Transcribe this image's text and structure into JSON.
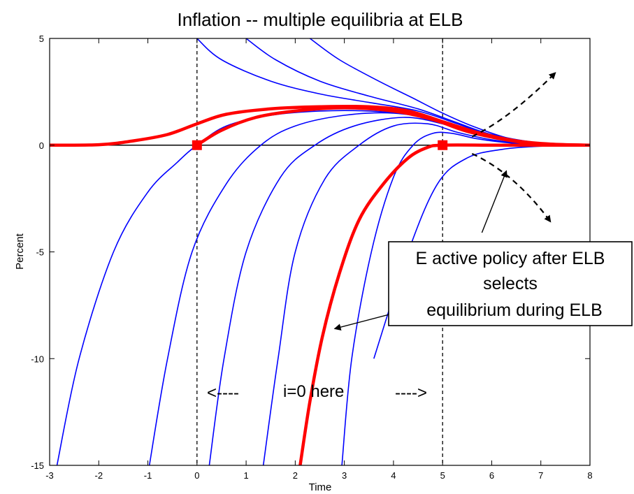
{
  "chart_data": {
    "type": "line",
    "title": "Inflation -- multiple equilibria at ELB",
    "xlabel": "Time",
    "ylabel": "Percent",
    "xlim": [
      -3,
      8
    ],
    "ylim": [
      -15,
      5
    ],
    "x_ticks": [
      -3,
      -2,
      -1,
      0,
      1,
      2,
      3,
      4,
      5,
      6,
      7,
      8
    ],
    "y_ticks": [
      5,
      0,
      -5,
      -10,
      -15
    ],
    "grid": false,
    "vertical_dashed_lines_at_x": [
      0,
      5
    ],
    "colors": {
      "blue_series": "#0000ff",
      "red_series": "#ff0000",
      "zero_line": "#000000"
    },
    "blue_series": [
      {
        "points": [
          [
            -2.85,
            -15
          ],
          [
            -2.4,
            -10
          ],
          [
            -1.7,
            -5
          ],
          [
            -1.0,
            -2.2
          ],
          [
            -0.4,
            -0.8
          ],
          [
            0,
            0
          ],
          [
            0.6,
            0.9
          ],
          [
            1.5,
            1.4
          ],
          [
            2.5,
            1.6
          ],
          [
            3.5,
            1.6
          ],
          [
            4.5,
            1.4
          ],
          [
            5.3,
            0.9
          ],
          [
            6,
            0.4
          ],
          [
            7,
            0.05
          ],
          [
            8,
            0
          ]
        ]
      },
      {
        "points": [
          [
            -0.97,
            -15
          ],
          [
            -0.6,
            -10
          ],
          [
            -0.1,
            -5
          ],
          [
            0.6,
            -1.8
          ],
          [
            1.3,
            0
          ],
          [
            2,
            0.9
          ],
          [
            3,
            1.4
          ],
          [
            4,
            1.5
          ],
          [
            4.8,
            1.2
          ],
          [
            5.5,
            0.7
          ],
          [
            6.3,
            0.2
          ],
          [
            7,
            0.05
          ],
          [
            8,
            0
          ]
        ]
      },
      {
        "points": [
          [
            0.25,
            -15
          ],
          [
            0.55,
            -10
          ],
          [
            1.0,
            -5
          ],
          [
            1.7,
            -1.5
          ],
          [
            2.4,
            0
          ],
          [
            3.2,
            0.9
          ],
          [
            4.2,
            1.3
          ],
          [
            5,
            1.0
          ],
          [
            5.7,
            0.5
          ],
          [
            6.5,
            0.15
          ],
          [
            7.2,
            0.03
          ],
          [
            8,
            0
          ]
        ]
      },
      {
        "points": [
          [
            1.35,
            -15
          ],
          [
            1.65,
            -10
          ],
          [
            2.0,
            -5
          ],
          [
            2.6,
            -1.6
          ],
          [
            3.3,
            0
          ],
          [
            4.0,
            0.9
          ],
          [
            4.7,
            1.0
          ],
          [
            5.3,
            0.6
          ],
          [
            6,
            0.25
          ],
          [
            6.8,
            0.05
          ],
          [
            8,
            0
          ]
        ]
      },
      {
        "points": [
          [
            2.95,
            -15
          ],
          [
            3.15,
            -10
          ],
          [
            3.55,
            -5
          ],
          [
            4.0,
            -1.5
          ],
          [
            4.4,
            0
          ],
          [
            4.8,
            0.55
          ],
          [
            5.2,
            0.55
          ],
          [
            5.7,
            0.3
          ],
          [
            6.4,
            0.1
          ],
          [
            7.2,
            0.02
          ],
          [
            8,
            0
          ]
        ]
      },
      {
        "points": [
          [
            3.6,
            -10
          ],
          [
            4.3,
            -5
          ],
          [
            4.9,
            -1.8
          ],
          [
            5.5,
            -0.6
          ],
          [
            6.2,
            -0.2
          ],
          [
            7,
            -0.05
          ],
          [
            8,
            0
          ]
        ]
      },
      {
        "points": [
          [
            0,
            5
          ],
          [
            0.5,
            4.0
          ],
          [
            1.5,
            3.0
          ],
          [
            2.5,
            2.4
          ],
          [
            3.5,
            2.0
          ],
          [
            4.5,
            1.6
          ],
          [
            5.3,
            1.0
          ],
          [
            6,
            0.45
          ],
          [
            7,
            0.1
          ],
          [
            8,
            0
          ]
        ]
      },
      {
        "points": [
          [
            1.0,
            5
          ],
          [
            1.6,
            4.0
          ],
          [
            2.5,
            3.0
          ],
          [
            3.5,
            2.3
          ],
          [
            4.5,
            1.7
          ],
          [
            5.3,
            1.05
          ],
          [
            6,
            0.5
          ],
          [
            7,
            0.1
          ],
          [
            8,
            0
          ]
        ]
      },
      {
        "points": [
          [
            2.3,
            5
          ],
          [
            2.9,
            4.0
          ],
          [
            3.7,
            3.0
          ],
          [
            4.4,
            2.2
          ],
          [
            5.0,
            1.5
          ],
          [
            5.6,
            0.9
          ],
          [
            6.3,
            0.35
          ],
          [
            7,
            0.1
          ],
          [
            8,
            0
          ]
        ]
      }
    ],
    "red_series": [
      {
        "points": [
          [
            -3,
            0
          ],
          [
            -2,
            0.02
          ],
          [
            -1.3,
            0.2
          ],
          [
            -0.6,
            0.5
          ],
          [
            0,
            1.0
          ],
          [
            0.6,
            1.45
          ],
          [
            1.5,
            1.7
          ],
          [
            2.5,
            1.8
          ],
          [
            3.5,
            1.8
          ],
          [
            4.3,
            1.6
          ],
          [
            5,
            1.1
          ],
          [
            5.7,
            0.6
          ],
          [
            6.5,
            0.2
          ],
          [
            7.2,
            0.05
          ],
          [
            8,
            0
          ]
        ]
      },
      {
        "points": [
          [
            0,
            0
          ],
          [
            0.5,
            0.7
          ],
          [
            1.2,
            1.3
          ],
          [
            2,
            1.6
          ],
          [
            3,
            1.75
          ],
          [
            4,
            1.6
          ],
          [
            4.8,
            1.2
          ],
          [
            5.5,
            0.65
          ],
          [
            6.3,
            0.25
          ],
          [
            7,
            0.05
          ],
          [
            8,
            0
          ]
        ]
      },
      {
        "points": [
          [
            2.1,
            -15
          ],
          [
            2.3,
            -12
          ],
          [
            2.55,
            -9
          ],
          [
            2.9,
            -6
          ],
          [
            3.3,
            -3.5
          ],
          [
            3.8,
            -1.8
          ],
          [
            4.3,
            -0.6
          ],
          [
            4.7,
            -0.1
          ],
          [
            5,
            0
          ],
          [
            6,
            0
          ],
          [
            7,
            0
          ],
          [
            8,
            0
          ]
        ]
      }
    ],
    "markers": [
      [
        0,
        0
      ],
      [
        5,
        0
      ]
    ],
    "annotations": {
      "box_line1": "E active policy  after ELB",
      "box_line2": "selects",
      "box_line3": "equilibrium during ELB",
      "left_arrow_text": "<----",
      "center_text": "i=0 here",
      "right_arrow_text": "---->"
    },
    "diverging_arrows_from_x5": [
      {
        "from": [
          5.6,
          0.4
        ],
        "to": [
          7.3,
          3.4
        ]
      },
      {
        "from": [
          5.6,
          -0.4
        ],
        "to": [
          7.2,
          -3.6
        ]
      }
    ],
    "pointer_arrows": [
      {
        "from": [
          5.8,
          -4.1
        ],
        "to": [
          6.3,
          -1.2
        ]
      },
      {
        "from": [
          4.3,
          -7.7
        ],
        "to": [
          2.8,
          -8.6
        ]
      }
    ]
  }
}
